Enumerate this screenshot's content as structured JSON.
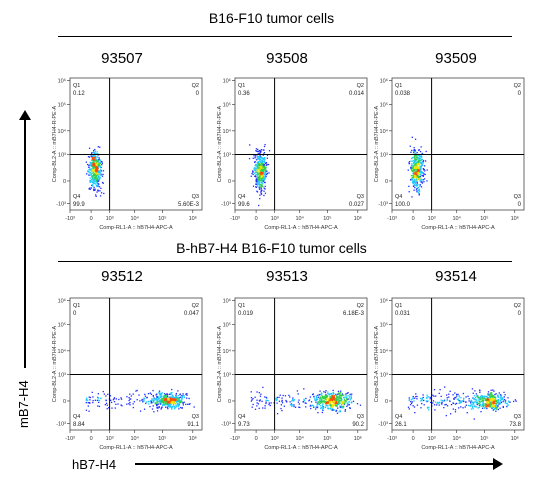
{
  "figure": {
    "section_top_title": "B16-F10 tumor cells",
    "section_bottom_title": "B-hB7-H4 B16-F10 tumor cells",
    "y_axis_title": "mB7-H4",
    "x_axis_title": "hB7-H4"
  },
  "panel_axis": {
    "x_label": "Comp-RL1-A :: hB7H4-APC-A",
    "y_label": "Comp-BL2-A :: mB7H4-R-PE-A",
    "x_ticks": [
      "-10³",
      "0",
      "10³",
      "10⁴",
      "10⁵",
      "10⁶"
    ],
    "y_ticks": [
      "10⁶",
      "10⁵",
      "10⁴",
      "10³",
      "0",
      "-10³"
    ]
  },
  "chart_data": [
    {
      "type": "scatter",
      "sample": "93507",
      "group": "B16-F10 tumor cells",
      "quadrants": {
        "Q1": "0.12",
        "Q2": "0",
        "Q3": "5.60E-3",
        "Q4": "99.9"
      }
    },
    {
      "type": "scatter",
      "sample": "93508",
      "group": "B16-F10 tumor cells",
      "quadrants": {
        "Q1": "0.36",
        "Q2": "0.014",
        "Q3": "0.027",
        "Q4": "99.6"
      }
    },
    {
      "type": "scatter",
      "sample": "93509",
      "group": "B16-F10 tumor cells",
      "quadrants": {
        "Q1": "0.038",
        "Q2": "0",
        "Q3": "0",
        "Q4": "100.0"
      }
    },
    {
      "type": "scatter",
      "sample": "93512",
      "group": "B-hB7-H4 B16-F10 tumor cells",
      "quadrants": {
        "Q1": "0",
        "Q2": "0.047",
        "Q3": "91.1",
        "Q4": "8.84"
      }
    },
    {
      "type": "scatter",
      "sample": "93513",
      "group": "B-hB7-H4 B16-F10 tumor cells",
      "quadrants": {
        "Q1": "0.019",
        "Q2": "6.18E-3",
        "Q3": "90.2",
        "Q4": "9.73"
      }
    },
    {
      "type": "scatter",
      "sample": "93514",
      "group": "B-hB7-H4 B16-F10 tumor cells",
      "quadrants": {
        "Q1": "0.031",
        "Q2": "0",
        "Q3": "73.8",
        "Q4": "26.1"
      }
    }
  ],
  "colors": {
    "dens_low": "#1f2bff",
    "dens_mid": "#18c8ff",
    "dens_high": "#2fd04a",
    "dens_peak": "#f2e600",
    "dens_core": "#ff4a00"
  }
}
